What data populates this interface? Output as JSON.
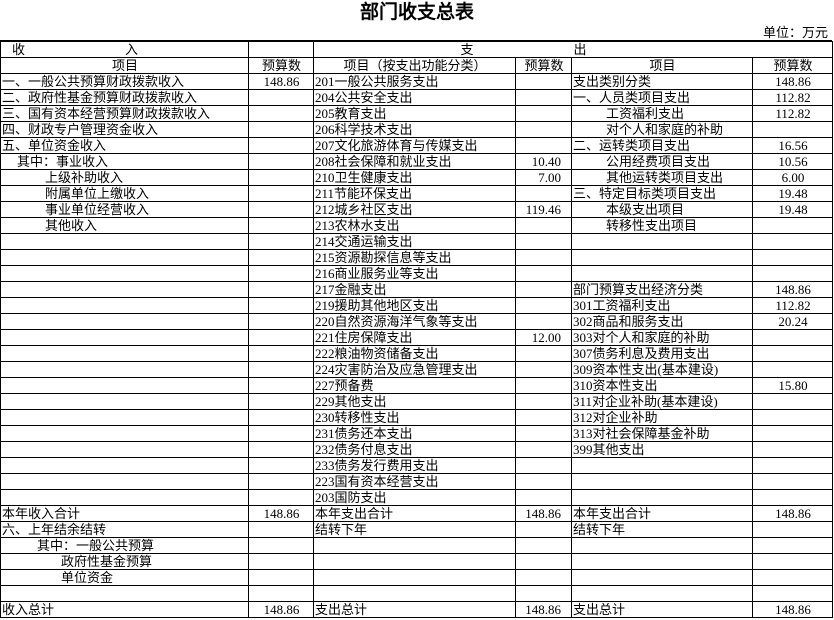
{
  "header": {
    "title": "部门收支总表",
    "unit": "单位：万元"
  },
  "table": {
    "sections": [
      "收入",
      "支出"
    ],
    "columns": [
      "项目",
      "预算数",
      "项目（按支出功能分类）",
      "预算数",
      "项目",
      "预算数"
    ],
    "rows": [
      [
        "一、一般公共预算财政拨款收入",
        "148.86",
        "201一般公共服务支出",
        null,
        "支出类别分类",
        "148.86"
      ],
      [
        "二、政府性基金预算财政拨款收入",
        null,
        "204公共安全支出",
        null,
        "一、人员类项目支出",
        "112.82"
      ],
      [
        "三、国有资本经营预算财政拨款收入",
        null,
        "205教育支出",
        null,
        "工资福利支出",
        "112.82"
      ],
      [
        "四、财政专户管理资金收入",
        null,
        "206科学技术支出",
        null,
        "对个人和家庭的补助",
        null
      ],
      [
        "五、单位资金收入",
        null,
        "207文化旅游体育与传媒支出",
        null,
        "二、运转类项目支出",
        "16.56"
      ],
      [
        "其中：事业收入",
        null,
        "208社会保障和就业支出",
        "10.40",
        "公用经费项目支出",
        "10.56"
      ],
      [
        "上级补助收入",
        null,
        "210卫生健康支出",
        "7.00",
        "其他运转类项目支出",
        "6.00"
      ],
      [
        "附属单位上缴收入",
        null,
        "211节能环保支出",
        null,
        "三、特定目标类项目支出",
        "19.48"
      ],
      [
        "事业单位经营收入",
        null,
        "212城乡社区支出",
        "119.46",
        "本级支出项目",
        "19.48"
      ],
      [
        "其他收入",
        null,
        "213农林水支出",
        null,
        "转移性支出项目",
        null
      ],
      [
        null,
        null,
        "214交通运输支出",
        null,
        null,
        null
      ],
      [
        null,
        null,
        "215资源勘探信息等支出",
        null,
        null,
        null
      ],
      [
        null,
        null,
        "216商业服务业等支出",
        null,
        null,
        null
      ],
      [
        null,
        null,
        "217金融支出",
        null,
        "部门预算支出经济分类",
        "148.86"
      ],
      [
        null,
        null,
        "219援助其他地区支出",
        null,
        "301工资福利支出",
        "112.82"
      ],
      [
        null,
        null,
        "220自然资源海洋气象等支出",
        null,
        "302商品和服务支出",
        "20.24"
      ],
      [
        null,
        null,
        "221住房保障支出",
        "12.00",
        "303对个人和家庭的补助",
        null
      ],
      [
        null,
        null,
        "222粮油物资储备支出",
        null,
        "307债务利息及费用支出",
        null
      ],
      [
        null,
        null,
        "224灾害防治及应急管理支出",
        null,
        "309资本性支出(基本建设)",
        null
      ],
      [
        null,
        null,
        "227预备费",
        null,
        "310资本性支出",
        "15.80"
      ],
      [
        null,
        null,
        "229其他支出",
        null,
        "311对企业补助(基本建设)",
        null
      ],
      [
        null,
        null,
        "230转移性支出",
        null,
        "312对企业补助",
        null
      ],
      [
        null,
        null,
        "231债务还本支出",
        null,
        "313对社会保障基金补助",
        null
      ],
      [
        null,
        null,
        "232债务付息支出",
        null,
        "399其他支出",
        null
      ],
      [
        null,
        null,
        "233债务发行费用支出",
        null,
        null,
        null
      ],
      [
        null,
        null,
        "223国有资本经营支出",
        null,
        null,
        null
      ],
      [
        null,
        null,
        "203国防支出",
        null,
        null,
        null
      ],
      [
        "本年收入合计",
        "148.86",
        "本年支出合计",
        "148.86",
        "本年支出合计",
        "148.86"
      ],
      [
        "六、上年结余结转",
        null,
        "结转下年",
        null,
        "结转下年",
        null
      ],
      [
        "其中：一般公共预算",
        null,
        null,
        null,
        null,
        null
      ],
      [
        "政府性基金预算",
        null,
        null,
        null,
        null,
        null
      ],
      [
        "单位资金",
        null,
        null,
        null,
        null,
        null
      ],
      [
        null,
        null,
        null,
        null,
        null,
        null
      ],
      [
        "收入总计",
        "148.86",
        "支出总计",
        "148.86",
        "支出总计",
        "148.86"
      ]
    ]
  }
}
